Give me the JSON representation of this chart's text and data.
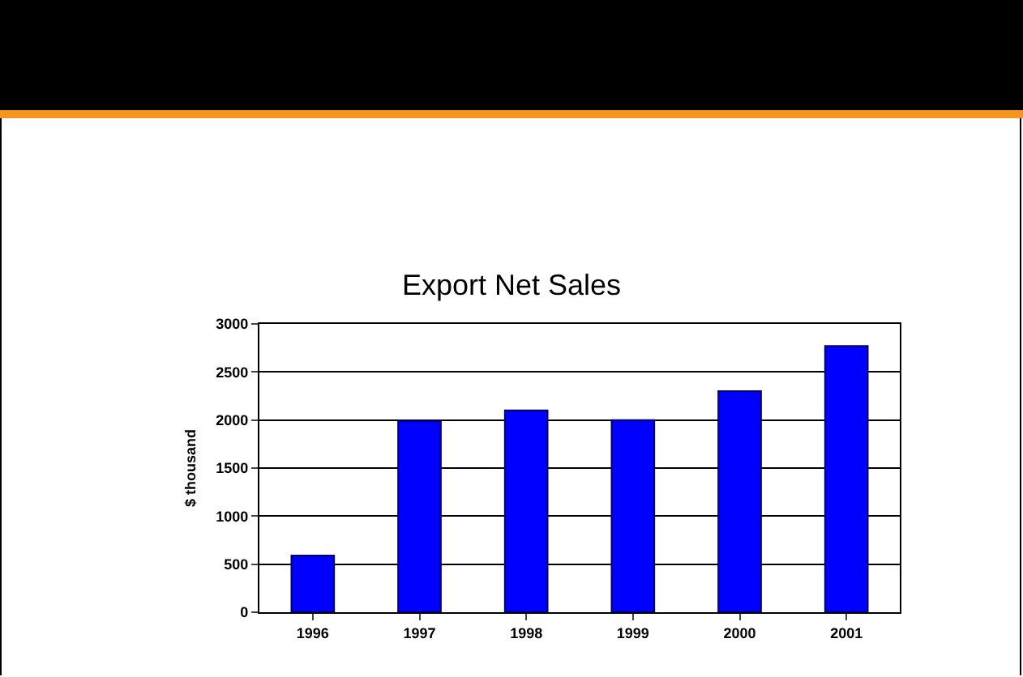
{
  "chart_data": {
    "type": "bar",
    "title": "Export Net Sales",
    "ylabel": "$ thousand",
    "categories": [
      "1996",
      "1997",
      "1998",
      "1999",
      "2000",
      "2001"
    ],
    "values": [
      590,
      1990,
      2100,
      2000,
      2300,
      2770
    ],
    "color": "#0000ff",
    "ylim": [
      0,
      3000
    ],
    "yticks": [
      0,
      500,
      1000,
      1500,
      2000,
      2500,
      3000
    ],
    "grid": "y",
    "legend": false
  }
}
